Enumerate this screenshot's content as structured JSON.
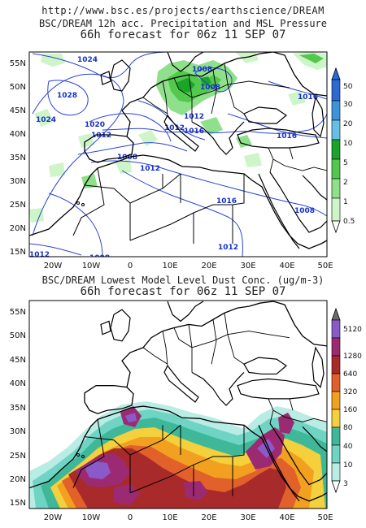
{
  "source_url": "http://www.bsc.es/projects/earthscience/DREAM",
  "top_panel": {
    "title_line1": "BSC/DREAM 12h acc. Precipitation and MSL Pressure",
    "title_line2": "66h forecast for 06z 11 SEP 07",
    "colorbar_labels": [
      "0.5",
      "1",
      "2",
      "5",
      "10",
      "20",
      "30",
      "50"
    ],
    "colorbar_colors": [
      "#cdf5c8",
      "#8fe08a",
      "#52c84c",
      "#1aa52a",
      "#66bfe8",
      "#3d94dc",
      "#2a6ad2"
    ],
    "isobar_labels": [
      "1024",
      "1028",
      "1024",
      "1020",
      "1016",
      "1012",
      "1008",
      "1012",
      "1016",
      "1012",
      "1008",
      "1008",
      "1008",
      "1012",
      "1016",
      "1016",
      "1012",
      "1008",
      "1012"
    ]
  },
  "bottom_panel": {
    "title_line1": "BSC/DREAM Lowest Model Level Dust Conc. (ug/m-3)",
    "title_line2": "66h forecast for 06z 11 SEP 07",
    "colorbar_labels": [
      "3",
      "10",
      "40",
      "80",
      "160",
      "320",
      "640",
      "1280",
      "5120"
    ],
    "colorbar_colors": [
      "#b9ece4",
      "#6fd4c4",
      "#3fb89a",
      "#f3d03c",
      "#f2a020",
      "#e2602a",
      "#a82a2a",
      "#9c2a72",
      "#8a5ac8",
      "#6a6a6a"
    ]
  },
  "map": {
    "lat_labels": [
      "55N",
      "50N",
      "45N",
      "40N",
      "35N",
      "30N",
      "25N",
      "20N",
      "15N"
    ],
    "lon_labels": [
      "20W",
      "10W",
      "0",
      "10E",
      "20E",
      "30E",
      "40E",
      "50E"
    ],
    "extent": {
      "lon_min": -26,
      "lon_max": 50,
      "lat_min": 14,
      "lat_max": 58
    }
  }
}
